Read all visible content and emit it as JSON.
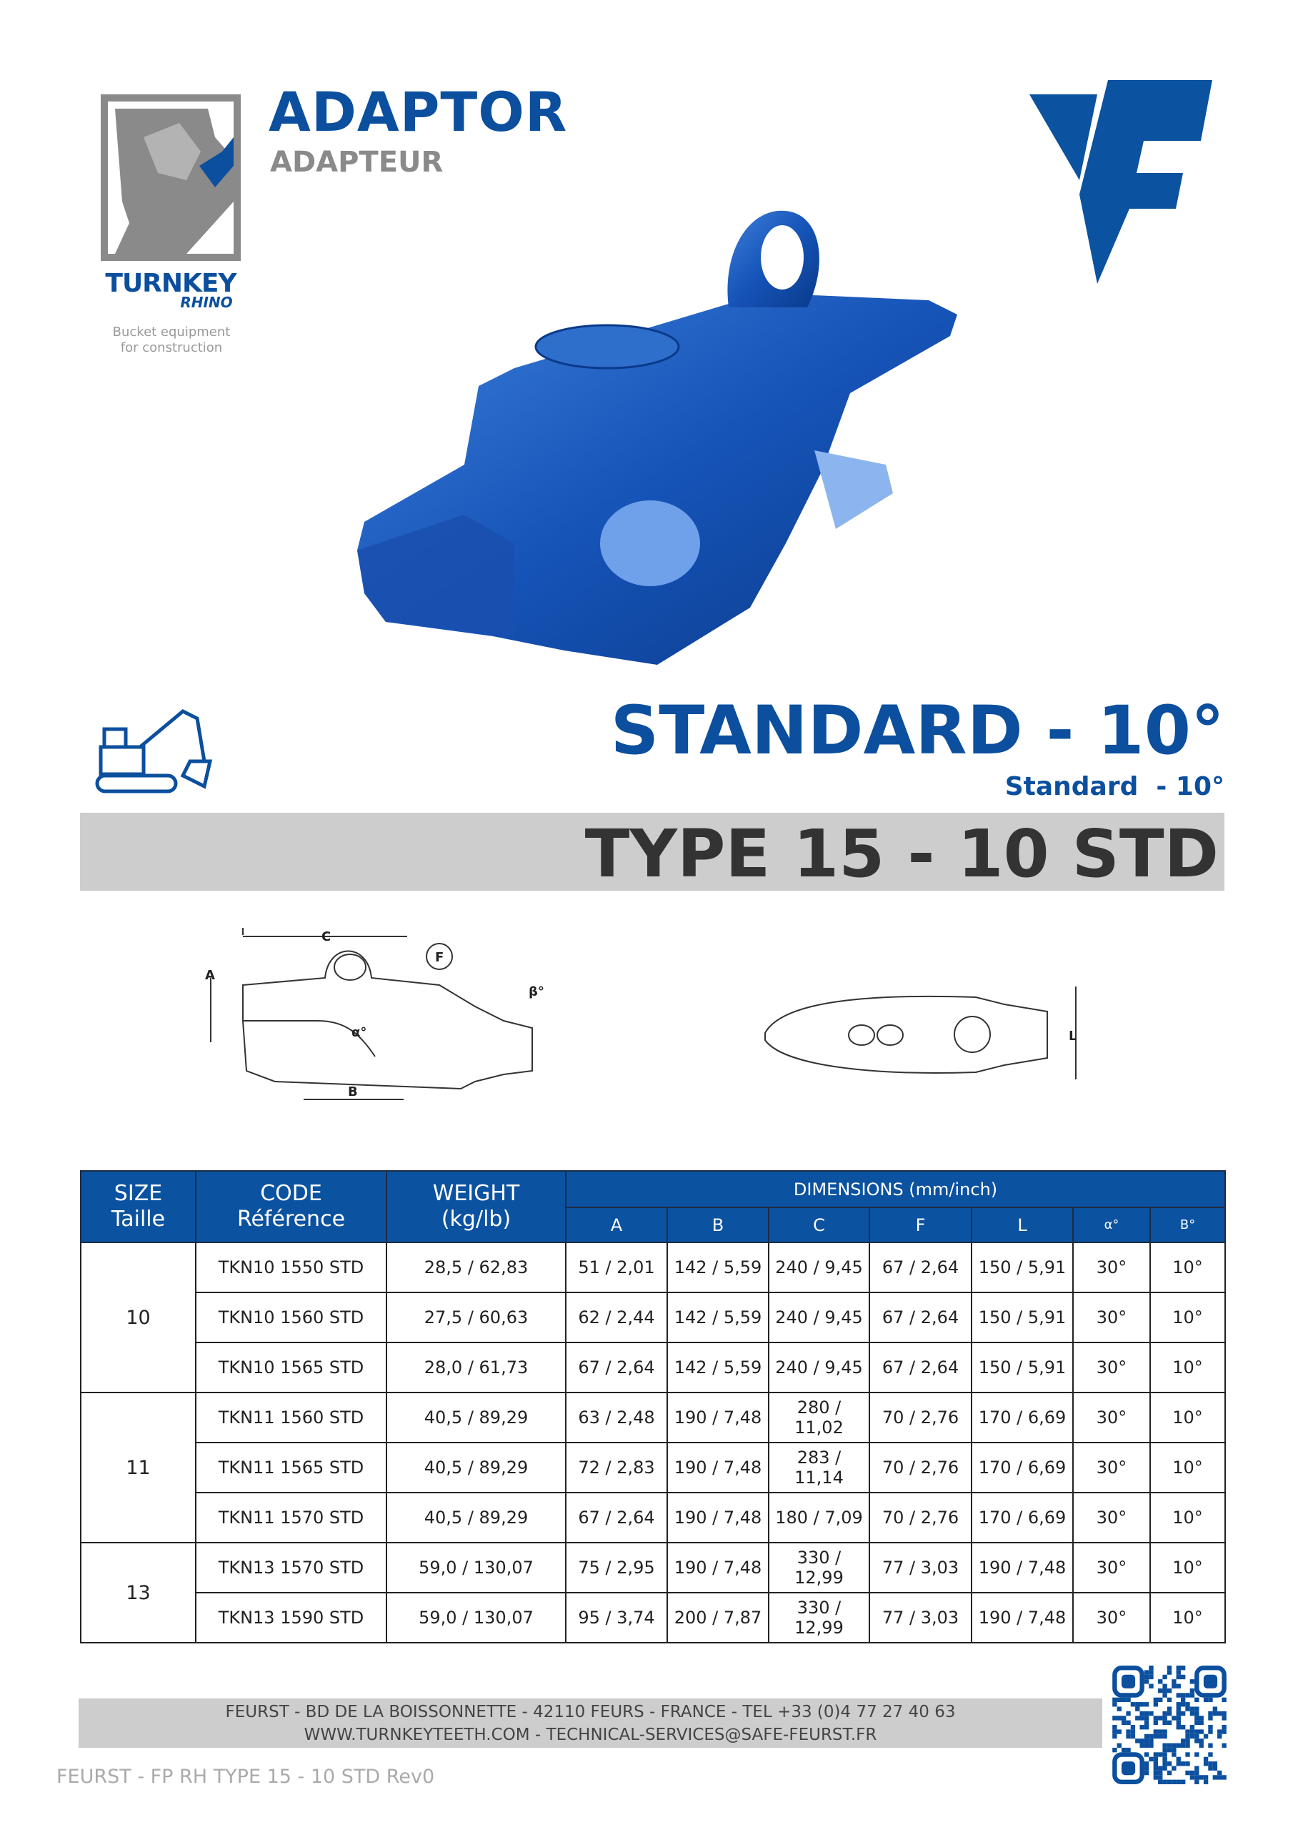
{
  "header": {
    "title": "ADAPTOR",
    "subtitle": "ADAPTEUR",
    "brand": "TURNKEY",
    "brand_sub": "RHINO",
    "tagline_1": "Bucket equipment",
    "tagline_2": "for construction"
  },
  "profile": {
    "title": "STANDARD - 10°",
    "subtitle": "Standard  - 10°",
    "type": "TYPE 15 - 10 STD"
  },
  "drawing_labels": {
    "A": "A",
    "B": "B",
    "C": "C",
    "F": "F",
    "L": "L",
    "alpha": "α°",
    "beta": "β°"
  },
  "colors": {
    "brand_blue": "#0b4f9e",
    "table_header": "#0b52a0",
    "band_gray": "#cdcdcd"
  },
  "table": {
    "headers": {
      "size": "SIZE",
      "size_fr": "Taille",
      "code": "CODE",
      "code_fr": "Référence",
      "weight": "WEIGHT",
      "weight_unit": "(kg/lb)",
      "dimensions": "DIMENSIONS (mm/inch)",
      "dims": [
        "A",
        "B",
        "C",
        "F",
        "L",
        "α°",
        "B°"
      ]
    },
    "groups": [
      {
        "size": "10",
        "rows": [
          {
            "code": "TKN10 1550 STD",
            "weight": "28,5 / 62,83",
            "A": "51 / 2,01",
            "B": "142 / 5,59",
            "C": "240 / 9,45",
            "F": "67 / 2,64",
            "L": "150 / 5,91",
            "alpha": "30°",
            "beta": "10°"
          },
          {
            "code": "TKN10 1560 STD",
            "weight": "27,5 / 60,63",
            "A": "62 / 2,44",
            "B": "142 / 5,59",
            "C": "240 / 9,45",
            "F": "67 / 2,64",
            "L": "150 / 5,91",
            "alpha": "30°",
            "beta": "10°"
          },
          {
            "code": "TKN10 1565 STD",
            "weight": "28,0 / 61,73",
            "A": "67 / 2,64",
            "B": "142 / 5,59",
            "C": "240 / 9,45",
            "F": "67 / 2,64",
            "L": "150 / 5,91",
            "alpha": "30°",
            "beta": "10°"
          }
        ]
      },
      {
        "size": "11",
        "rows": [
          {
            "code": "TKN11 1560 STD",
            "weight": "40,5 / 89,29",
            "A": "63 / 2,48",
            "B": "190 / 7,48",
            "C": "280 / 11,02",
            "F": "70 / 2,76",
            "L": "170 / 6,69",
            "alpha": "30°",
            "beta": "10°"
          },
          {
            "code": "TKN11 1565 STD",
            "weight": "40,5 / 89,29",
            "A": "72 / 2,83",
            "B": "190 / 7,48",
            "C": "283 / 11,14",
            "F": "70 / 2,76",
            "L": "170 / 6,69",
            "alpha": "30°",
            "beta": "10°"
          },
          {
            "code": "TKN11 1570 STD",
            "weight": "40,5 / 89,29",
            "A": "67 / 2,64",
            "B": "190 / 7,48",
            "C": "180 / 7,09",
            "F": "70 / 2,76",
            "L": "170 / 6,69",
            "alpha": "30°",
            "beta": "10°"
          }
        ]
      },
      {
        "size": "13",
        "rows": [
          {
            "code": "TKN13 1570 STD",
            "weight": "59,0 / 130,07",
            "A": "75 / 2,95",
            "B": "190 / 7,48",
            "C": "330 / 12,99",
            "F": "77 / 3,03",
            "L": "190 / 7,48",
            "alpha": "30°",
            "beta": "10°"
          },
          {
            "code": "TKN13 1590 STD",
            "weight": "59,0 / 130,07",
            "A": "95 / 3,74",
            "B": "200 / 7,87",
            "C": "330 / 12,99",
            "F": "77 / 3,03",
            "L": "190 / 7,48",
            "alpha": "30°",
            "beta": "10°"
          }
        ]
      }
    ]
  },
  "footer": {
    "line1": "FEURST - BD DE LA BOISSONNETTE - 42110 FEURS - FRANCE - TEL +33 (0)4 77 27 40 63",
    "line2": "WWW.TURNKEYTEETH.COM - TECHNICAL-SERVICES@SAFE-FEURST.FR",
    "doc_ref": "FEURST - FP RH TYPE 15 - 10 STD Rev0"
  }
}
